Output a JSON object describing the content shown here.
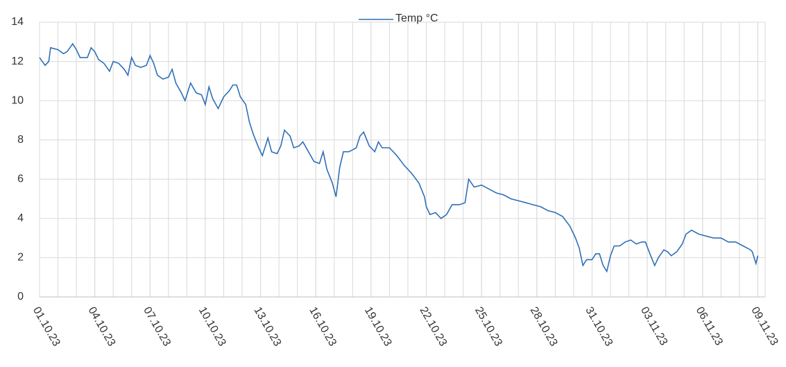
{
  "chart_data": {
    "type": "line",
    "x": [
      0,
      0.3,
      0.5,
      0.6,
      1.0,
      1.3,
      1.5,
      1.8,
      2.0,
      2.2,
      2.6,
      2.8,
      3.0,
      3.2,
      3.5,
      3.8,
      4.0,
      4.3,
      4.6,
      4.8,
      5.0,
      5.2,
      5.5,
      5.8,
      6.0,
      6.2,
      6.4,
      6.7,
      7.0,
      7.2,
      7.4,
      7.7,
      7.9,
      8.2,
      8.5,
      8.8,
      9.0,
      9.2,
      9.4,
      9.7,
      10.0,
      10.3,
      10.5,
      10.7,
      10.9,
      11.2,
      11.4,
      11.6,
      11.9,
      12.1,
      12.4,
      12.6,
      12.9,
      13.1,
      13.3,
      13.6,
      13.8,
      14.1,
      14.3,
      14.6,
      14.9,
      15.2,
      15.4,
      15.6,
      15.9,
      16.1,
      16.3,
      16.5,
      16.8,
      17.0,
      17.2,
      17.4,
      17.6,
      17.9,
      18.2,
      18.4,
      18.6,
      19.0,
      19.4,
      19.8,
      20.2,
      20.6,
      20.9,
      21.0,
      21.2,
      21.5,
      21.8,
      22.1,
      22.4,
      22.8,
      23.1,
      23.3,
      23.6,
      24.0,
      24.4,
      24.8,
      25.2,
      25.6,
      26.0,
      26.4,
      26.8,
      27.2,
      27.6,
      28.0,
      28.4,
      28.8,
      29.1,
      29.3,
      29.5,
      29.7,
      30.0,
      30.2,
      30.4,
      30.6,
      30.8,
      31.0,
      31.2,
      31.5,
      31.8,
      32.1,
      32.4,
      32.7,
      32.9,
      33.1,
      33.4,
      33.6,
      33.9,
      34.1,
      34.3,
      34.6,
      34.9,
      35.1,
      35.4,
      35.8,
      36.2,
      36.6,
      37.0,
      37.4,
      37.8,
      38.2,
      38.4,
      38.6,
      38.7,
      38.9,
      39.0
    ],
    "series": [
      {
        "name": "Temp °C",
        "color": "#2e6fb7",
        "values": [
          12.2,
          11.8,
          12.0,
          12.7,
          12.6,
          12.4,
          12.5,
          12.9,
          12.6,
          12.2,
          12.2,
          12.7,
          12.5,
          12.1,
          11.9,
          11.5,
          12.0,
          11.9,
          11.6,
          11.3,
          12.2,
          11.8,
          11.7,
          11.8,
          12.3,
          11.9,
          11.3,
          11.1,
          11.2,
          11.6,
          10.9,
          10.4,
          10.0,
          10.9,
          10.4,
          10.3,
          9.8,
          10.7,
          10.1,
          9.6,
          10.2,
          10.5,
          10.8,
          10.8,
          10.2,
          9.8,
          8.9,
          8.3,
          7.6,
          7.2,
          8.1,
          7.4,
          7.3,
          7.7,
          8.5,
          8.2,
          7.6,
          7.7,
          7.9,
          7.4,
          6.9,
          6.8,
          7.4,
          6.5,
          5.8,
          5.1,
          6.6,
          7.4,
          7.4,
          7.5,
          7.6,
          8.2,
          8.4,
          7.7,
          7.4,
          7.9,
          7.6,
          7.6,
          7.2,
          6.7,
          6.3,
          5.8,
          5.1,
          4.6,
          4.2,
          4.3,
          4.0,
          4.2,
          4.7,
          4.7,
          4.8,
          6.0,
          5.6,
          5.7,
          5.5,
          5.3,
          5.2,
          5.0,
          4.9,
          4.8,
          4.7,
          4.6,
          4.4,
          4.3,
          4.1,
          3.6,
          3.0,
          2.5,
          1.6,
          1.9,
          1.9,
          2.2,
          2.2,
          1.6,
          1.3,
          2.1,
          2.6,
          2.6,
          2.8,
          2.9,
          2.7,
          2.8,
          2.8,
          2.3,
          1.6,
          2.0,
          2.4,
          2.3,
          2.1,
          2.3,
          2.7,
          3.2,
          3.4,
          3.2,
          3.1,
          3.0,
          3.0,
          2.8,
          2.8,
          2.6,
          2.5,
          2.4,
          2.3,
          1.7,
          2.1
        ]
      }
    ],
    "xlim": [
      0,
      39.4
    ],
    "xticks": [
      {
        "value": 0,
        "label": "01.10.23"
      },
      {
        "value": 3,
        "label": "04.10.23"
      },
      {
        "value": 6,
        "label": "07.10.23"
      },
      {
        "value": 9,
        "label": "10.10.23"
      },
      {
        "value": 12,
        "label": "13.10.23"
      },
      {
        "value": 15,
        "label": "16.10.23"
      },
      {
        "value": 18,
        "label": "19.10.23"
      },
      {
        "value": 21,
        "label": "22.10.23"
      },
      {
        "value": 24,
        "label": "25.10.23"
      },
      {
        "value": 27,
        "label": "28.10.23"
      },
      {
        "value": 30,
        "label": "31.10.23"
      },
      {
        "value": 33,
        "label": "03.11.23"
      },
      {
        "value": 36,
        "label": "06.11.23"
      },
      {
        "value": 39,
        "label": "09.11.23"
      }
    ],
    "ylim": [
      0,
      14
    ],
    "yticks": [
      0,
      2,
      4,
      6,
      8,
      10,
      12,
      14
    ],
    "grid": true,
    "legend": "top"
  }
}
